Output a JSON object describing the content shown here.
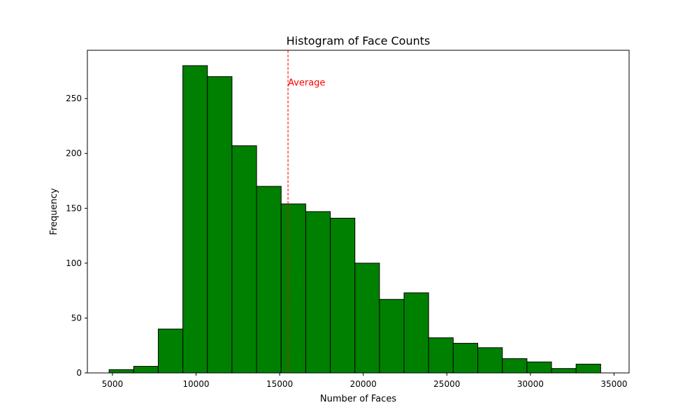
{
  "chart_data": {
    "type": "bar",
    "title": "Histogram of Face Counts",
    "xlabel": "Number of Faces",
    "ylabel": "Frequency",
    "xlim": [
      3500,
      35900
    ],
    "ylim": [
      0,
      294
    ],
    "bins": [
      {
        "x0": 4800,
        "x1": 6270,
        "count": 3
      },
      {
        "x0": 6270,
        "x1": 7740,
        "count": 6
      },
      {
        "x0": 7740,
        "x1": 9210,
        "count": 40
      },
      {
        "x0": 9210,
        "x1": 10680,
        "count": 280
      },
      {
        "x0": 10680,
        "x1": 12150,
        "count": 270
      },
      {
        "x0": 12150,
        "x1": 13620,
        "count": 207
      },
      {
        "x0": 13620,
        "x1": 15090,
        "count": 170
      },
      {
        "x0": 15090,
        "x1": 16560,
        "count": 154
      },
      {
        "x0": 16560,
        "x1": 18030,
        "count": 147
      },
      {
        "x0": 18030,
        "x1": 19500,
        "count": 141
      },
      {
        "x0": 19500,
        "x1": 20970,
        "count": 100
      },
      {
        "x0": 20970,
        "x1": 22440,
        "count": 67
      },
      {
        "x0": 22440,
        "x1": 23910,
        "count": 73
      },
      {
        "x0": 23910,
        "x1": 25380,
        "count": 32
      },
      {
        "x0": 25380,
        "x1": 26850,
        "count": 27
      },
      {
        "x0": 26850,
        "x1": 28320,
        "count": 23
      },
      {
        "x0": 28320,
        "x1": 29790,
        "count": 13
      },
      {
        "x0": 29790,
        "x1": 31260,
        "count": 10
      },
      {
        "x0": 31260,
        "x1": 32730,
        "count": 4
      },
      {
        "x0": 32730,
        "x1": 34200,
        "count": 8
      }
    ],
    "xticks": [
      {
        "value": 5000,
        "label": "5000"
      },
      {
        "value": 10000,
        "label": "10000"
      },
      {
        "value": 15000,
        "label": "15000"
      },
      {
        "value": 20000,
        "label": "20000"
      },
      {
        "value": 25000,
        "label": "25000"
      },
      {
        "value": 30000,
        "label": "30000"
      },
      {
        "value": 35000,
        "label": "35000"
      }
    ],
    "yticks": [
      {
        "value": 0,
        "label": "0"
      },
      {
        "value": 50,
        "label": "50"
      },
      {
        "value": 100,
        "label": "100"
      },
      {
        "value": 150,
        "label": "150"
      },
      {
        "value": 200,
        "label": "200"
      },
      {
        "value": 250,
        "label": "250"
      }
    ],
    "average_line": {
      "value": 15500,
      "label": "Average",
      "label_y": 265,
      "color": "#ff0000",
      "style": "dashed"
    },
    "bar_color": "#008000",
    "bar_edge_color": "#000000",
    "grid": false,
    "legend": "none"
  }
}
